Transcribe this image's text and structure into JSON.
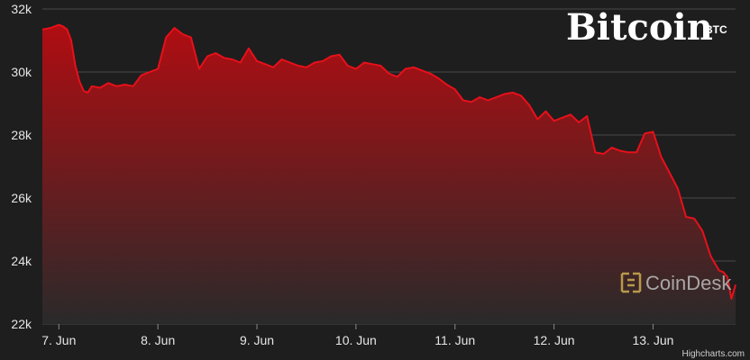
{
  "chart_data": {
    "type": "area",
    "title": "Bitcoin",
    "subtitle": "BTC",
    "xlabel": "",
    "ylabel": "",
    "ylim": [
      22000,
      32000
    ],
    "ytick_values": [
      22000,
      24000,
      26000,
      28000,
      30000,
      32000
    ],
    "ytick_labels": [
      "22k",
      "24k",
      "26k",
      "28k",
      "30k",
      "32k"
    ],
    "xlim": [
      "2021-06-06T20:00",
      "2021-06-13T20:00"
    ],
    "xtick_values": [
      "2021-06-07",
      "2021-06-08",
      "2021-06-09",
      "2021-06-10",
      "2021-06-11",
      "2021-06-12",
      "2021-06-13"
    ],
    "xtick_labels": [
      "7. Jun",
      "8. Jun",
      "9. Jun",
      "10. Jun",
      "11. Jun",
      "12. Jun",
      "13. Jun"
    ],
    "grid": true,
    "legend": "none",
    "colors": {
      "line": "#e8101a",
      "area_top": "#b00d12",
      "area_bottom": "#2a2a2a",
      "background": "#1e1e1e",
      "grid": "#4a4a4a"
    },
    "series": [
      {
        "x": [
          "2021-06-06T20:00",
          "2021-06-06T22:00",
          "2021-06-07T00:00",
          "2021-06-07T01:00",
          "2021-06-07T02:00",
          "2021-06-07T03:00",
          "2021-06-07T04:00",
          "2021-06-07T05:00",
          "2021-06-07T06:00",
          "2021-06-07T07:00",
          "2021-06-07T08:00",
          "2021-06-07T10:00",
          "2021-06-07T12:00",
          "2021-06-07T14:00",
          "2021-06-07T16:00",
          "2021-06-07T18:00",
          "2021-06-07T20:00",
          "2021-06-07T22:00",
          "2021-06-08T00:00",
          "2021-06-08T02:00",
          "2021-06-08T04:00",
          "2021-06-08T06:00",
          "2021-06-08T08:00",
          "2021-06-08T10:00",
          "2021-06-08T12:00",
          "2021-06-08T14:00",
          "2021-06-08T16:00",
          "2021-06-08T18:00",
          "2021-06-08T20:00",
          "2021-06-08T22:00",
          "2021-06-09T00:00",
          "2021-06-09T02:00",
          "2021-06-09T04:00",
          "2021-06-09T06:00",
          "2021-06-09T08:00",
          "2021-06-09T10:00",
          "2021-06-09T12:00",
          "2021-06-09T14:00",
          "2021-06-09T16:00",
          "2021-06-09T18:00",
          "2021-06-09T20:00",
          "2021-06-09T22:00",
          "2021-06-10T00:00",
          "2021-06-10T02:00",
          "2021-06-10T04:00",
          "2021-06-10T06:00",
          "2021-06-10T08:00",
          "2021-06-10T10:00",
          "2021-06-10T12:00",
          "2021-06-10T14:00",
          "2021-06-10T16:00",
          "2021-06-10T18:00",
          "2021-06-10T20:00",
          "2021-06-10T22:00",
          "2021-06-11T00:00",
          "2021-06-11T02:00",
          "2021-06-11T04:00",
          "2021-06-11T06:00",
          "2021-06-11T08:00",
          "2021-06-11T10:00",
          "2021-06-11T12:00",
          "2021-06-11T14:00",
          "2021-06-11T16:00",
          "2021-06-11T18:00",
          "2021-06-11T20:00",
          "2021-06-11T22:00",
          "2021-06-12T00:00",
          "2021-06-12T02:00",
          "2021-06-12T04:00",
          "2021-06-12T06:00",
          "2021-06-12T08:00",
          "2021-06-12T10:00",
          "2021-06-12T12:00",
          "2021-06-12T14:00",
          "2021-06-12T16:00",
          "2021-06-12T18:00",
          "2021-06-12T20:00",
          "2021-06-12T22:00",
          "2021-06-13T00:00",
          "2021-06-13T02:00",
          "2021-06-13T04:00",
          "2021-06-13T06:00",
          "2021-06-13T08:00",
          "2021-06-13T10:00",
          "2021-06-13T12:00",
          "2021-06-13T14:00",
          "2021-06-13T16:00",
          "2021-06-13T17:00",
          "2021-06-13T18:00",
          "2021-06-13T19:00",
          "2021-06-13T20:00"
        ],
        "values": [
          31350,
          31400,
          31500,
          31450,
          31350,
          31000,
          30200,
          29700,
          29400,
          29350,
          29550,
          29500,
          29650,
          29550,
          29600,
          29550,
          29900,
          30000,
          30100,
          31100,
          31400,
          31200,
          31100,
          30100,
          30500,
          30600,
          30450,
          30400,
          30300,
          30750,
          30350,
          30250,
          30150,
          30400,
          30300,
          30200,
          30150,
          30300,
          30350,
          30500,
          30550,
          30200,
          30100,
          30300,
          30250,
          30200,
          29950,
          29850,
          30100,
          30150,
          30050,
          29950,
          29800,
          29600,
          29450,
          29100,
          29050,
          29200,
          29100,
          29200,
          29300,
          29350,
          29250,
          28950,
          28500,
          28750,
          28450,
          28550,
          28650,
          28400,
          28600,
          27450,
          27400,
          27600,
          27500,
          27450,
          27450,
          28050,
          28100,
          27300,
          26800,
          26300,
          25400,
          25350,
          24950,
          24150,
          23700,
          23650,
          23500,
          22800,
          23250
        ]
      }
    ]
  },
  "credits": "Highcharts.com",
  "watermark": "CoinDesk"
}
